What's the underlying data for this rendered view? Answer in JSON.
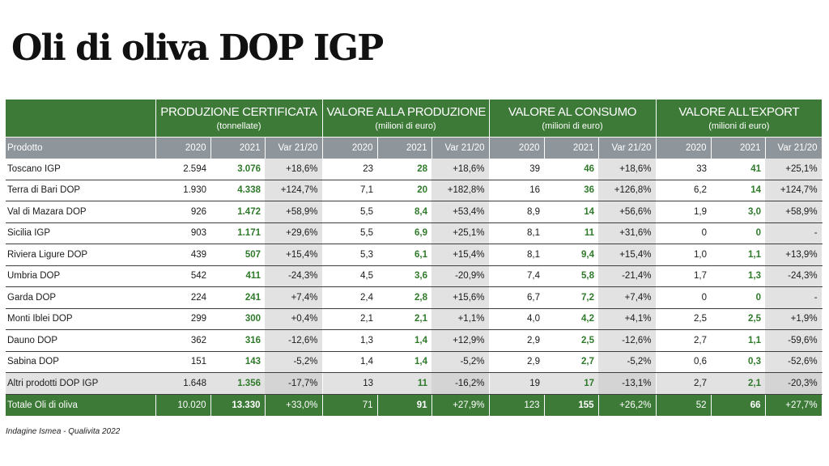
{
  "title": "Oli di oliva DOP IGP",
  "groups": [
    {
      "title": "PRODUZIONE CERTIFICATA",
      "unit": "(tonnellate)"
    },
    {
      "title": "VALORE ALLA PRODUZIONE",
      "unit": "(milioni di euro)"
    },
    {
      "title": "VALORE AL CONSUMO",
      "unit": "(milioni di euro)"
    },
    {
      "title": "VALORE ALL'EXPORT",
      "unit": "(milioni di euro)"
    }
  ],
  "subheader": {
    "product": "Prodotto",
    "y2020": "2020",
    "y2021": "2021",
    "var": "Var 21/20"
  },
  "rows": [
    {
      "name": "Toscano IGP",
      "v": [
        "2.594",
        "3.076",
        "+18,6%",
        "23",
        "28",
        "+18,6%",
        "39",
        "46",
        "+18,6%",
        "33",
        "41",
        "+25,1%"
      ]
    },
    {
      "name": "Terra di Bari DOP",
      "v": [
        "1.930",
        "4.338",
        "+124,7%",
        "7,1",
        "20",
        "+182,8%",
        "16",
        "36",
        "+126,8%",
        "6,2",
        "14",
        "+124,7%"
      ]
    },
    {
      "name": "Val di Mazara DOP",
      "v": [
        "926",
        "1.472",
        "+58,9%",
        "5,5",
        "8,4",
        "+53,4%",
        "8,9",
        "14",
        "+56,6%",
        "1,9",
        "3,0",
        "+58,9%"
      ]
    },
    {
      "name": "Sicilia IGP",
      "v": [
        "903",
        "1.171",
        "+29,6%",
        "5,5",
        "6,9",
        "+25,1%",
        "8,1",
        "11",
        "+31,6%",
        "0",
        "0",
        "-"
      ]
    },
    {
      "name": "Riviera Ligure DOP",
      "v": [
        "439",
        "507",
        "+15,4%",
        "5,3",
        "6,1",
        "+15,4%",
        "8,1",
        "9,4",
        "+15,4%",
        "1,0",
        "1,1",
        "+13,9%"
      ]
    },
    {
      "name": "Umbria DOP",
      "v": [
        "542",
        "411",
        "-24,3%",
        "4,5",
        "3,6",
        "-20,9%",
        "7,4",
        "5,8",
        "-21,4%",
        "1,7",
        "1,3",
        "-24,3%"
      ]
    },
    {
      "name": "Garda DOP",
      "v": [
        "224",
        "241",
        "+7,4%",
        "2,4",
        "2,8",
        "+15,6%",
        "6,7",
        "7,2",
        "+7,4%",
        "0",
        "0",
        "-"
      ]
    },
    {
      "name": "Monti Iblei DOP",
      "v": [
        "299",
        "300",
        "+0,4%",
        "2,1",
        "2,1",
        "+1,1%",
        "4,0",
        "4,2",
        "+4,1%",
        "2,5",
        "2,5",
        "+1,9%"
      ]
    },
    {
      "name": "Dauno DOP",
      "v": [
        "362",
        "316",
        "-12,6%",
        "1,3",
        "1,4",
        "+12,9%",
        "2,9",
        "2,5",
        "-12,6%",
        "2,7",
        "1,1",
        "-59,6%"
      ]
    },
    {
      "name": "Sabina DOP",
      "v": [
        "151",
        "143",
        "-5,2%",
        "1,4",
        "1,4",
        "-5,2%",
        "2,9",
        "2,7",
        "-5,2%",
        "0,6",
        "0,3",
        "-52,6%"
      ]
    },
    {
      "name": "Altri prodotti DOP IGP",
      "v": [
        "1.648",
        "1.356",
        "-17,7%",
        "13",
        "11",
        "-16,2%",
        "19",
        "17",
        "-13,1%",
        "2,7",
        "2,1",
        "-20,3%"
      ]
    }
  ],
  "total": {
    "name": "Totale Oli di oliva",
    "v": [
      "10.020",
      "13.330",
      "+33,0%",
      "71",
      "91",
      "+27,9%",
      "123",
      "155",
      "+26,2%",
      "52",
      "66",
      "+27,7%"
    ]
  },
  "source": "Indagine Ismea - Qualivita 2022",
  "colors": {
    "header_green": "#3d7a38",
    "subheader_grey": "#8e959b",
    "value_green": "#2f7a2a"
  }
}
